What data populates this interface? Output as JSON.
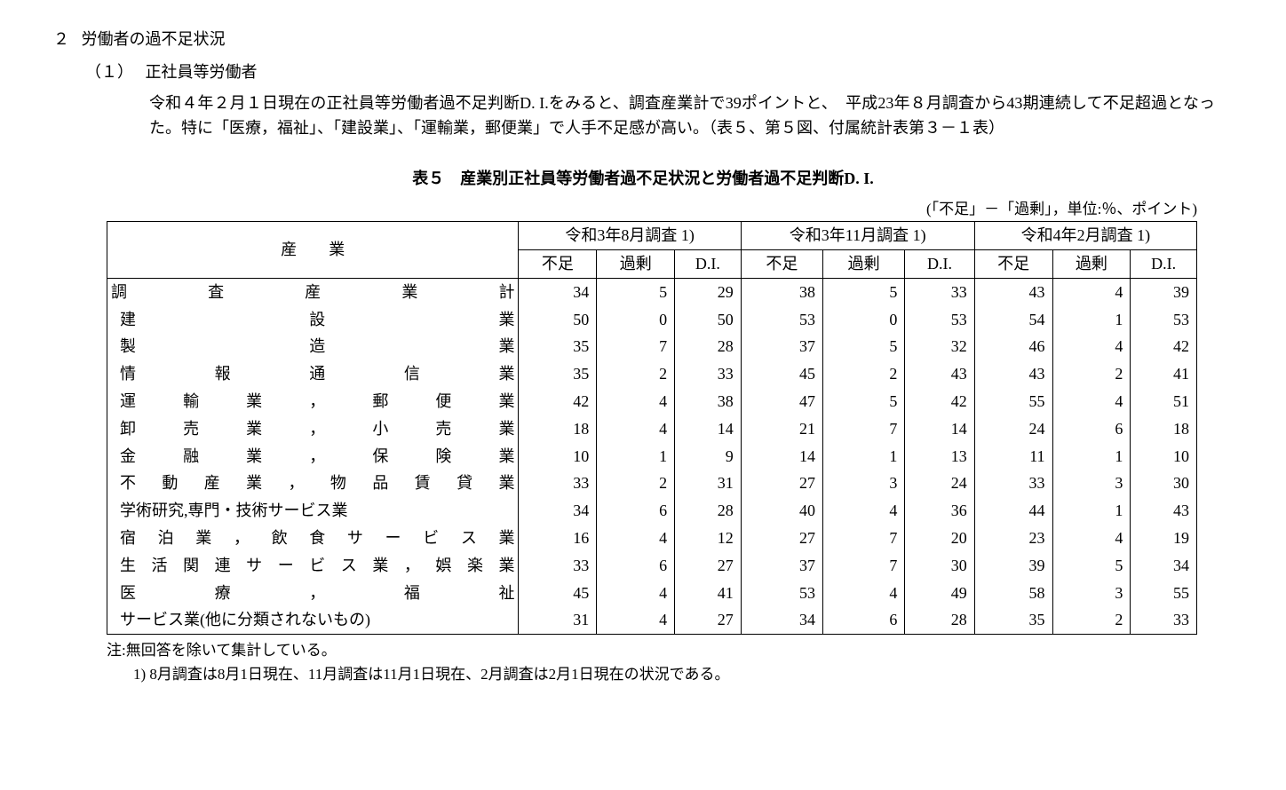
{
  "section": {
    "number": "２",
    "title": "労働者の過不足状況"
  },
  "subsection": {
    "number": "（１）",
    "title": "正社員等労働者"
  },
  "body": "令和４年２月１日現在の正社員等労働者過不足判断D. I.をみると、調査産業計で39ポイントと、　平成23年８月調査から43期連続して不足超過となった。特に「医療，福祉」、「建設業」、「運輸業，郵便業」で人手不足感が高い。（表５、第５図、付属統計表第３－１表）",
  "table": {
    "caption": "表５　産業別正社員等労働者過不足状況と労働者過不足判断D. I.",
    "unit_note": "(「不足」－「過剰」，単位:％、ポイント)",
    "industry_header": "産業",
    "surveys": [
      "令和3年8月調査 1)",
      "令和3年11月調査 1)",
      "令和4年2月調査 1)"
    ],
    "subcolumns": [
      "不足",
      "過剰",
      "D.I."
    ],
    "rows": [
      {
        "industry": "調査産業計",
        "values": [
          34,
          5,
          29,
          38,
          5,
          33,
          43,
          4,
          39
        ],
        "first": true
      },
      {
        "industry": "建設業",
        "values": [
          50,
          0,
          50,
          53,
          0,
          53,
          54,
          1,
          53
        ]
      },
      {
        "industry": "製造業",
        "values": [
          35,
          7,
          28,
          37,
          5,
          32,
          46,
          4,
          42
        ]
      },
      {
        "industry": "情報通信業",
        "values": [
          35,
          2,
          33,
          45,
          2,
          43,
          43,
          2,
          41
        ]
      },
      {
        "industry": "運輸業，郵便業",
        "values": [
          42,
          4,
          38,
          47,
          5,
          42,
          55,
          4,
          51
        ]
      },
      {
        "industry": "卸売業，小売業",
        "values": [
          18,
          4,
          14,
          21,
          7,
          14,
          24,
          6,
          18
        ]
      },
      {
        "industry": "金融業，保険業",
        "values": [
          10,
          1,
          9,
          14,
          1,
          13,
          11,
          1,
          10
        ]
      },
      {
        "industry": "不動産業，物品賃貸業",
        "values": [
          33,
          2,
          31,
          27,
          3,
          24,
          33,
          3,
          30
        ]
      },
      {
        "industry": "学術研究,専門・技術サービス業",
        "values": [
          34,
          6,
          28,
          40,
          4,
          36,
          44,
          1,
          43
        ],
        "nojust": true
      },
      {
        "industry": "宿泊業，飲食サービス業",
        "values": [
          16,
          4,
          12,
          27,
          7,
          20,
          23,
          4,
          19
        ]
      },
      {
        "industry": "生活関連サービス業，娯楽業",
        "values": [
          33,
          6,
          27,
          37,
          7,
          30,
          39,
          5,
          34
        ]
      },
      {
        "industry": "医療，福祉",
        "values": [
          45,
          4,
          41,
          53,
          4,
          49,
          58,
          3,
          55
        ]
      },
      {
        "industry": "サービス業(他に分類されないもの)",
        "values": [
          31,
          4,
          27,
          34,
          6,
          28,
          35,
          2,
          33
        ],
        "nojust": true
      }
    ],
    "footnote1": "注:無回答を除いて集計している。",
    "footnote2": "1)  8月調査は8月1日現在、11月調査は11月1日現在、2月調査は2月1日現在の状況である。"
  }
}
